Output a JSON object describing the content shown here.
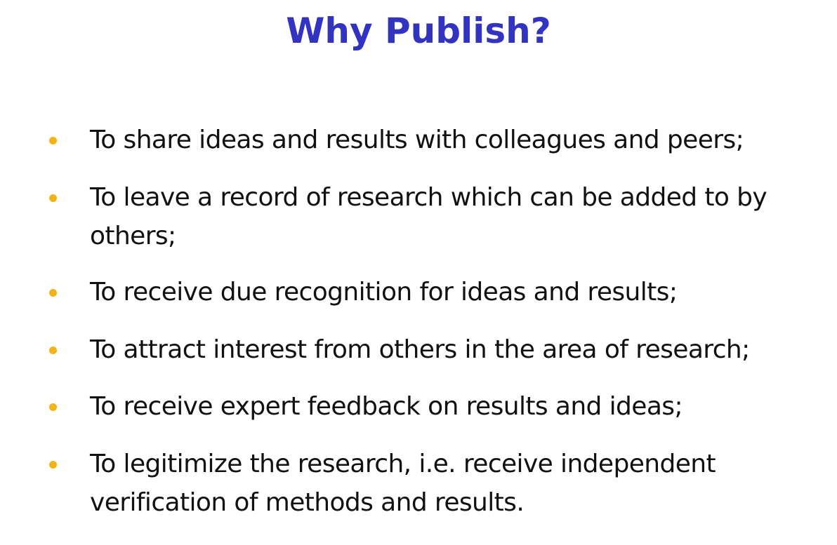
{
  "slide": {
    "title": "Why Publish?",
    "accent_color": "#3333c2",
    "bullet_color": "#f2b21a",
    "bullets": [
      {
        "text": "To share ideas and results with colleagues and peers;"
      },
      {
        "text": "To leave a record of research which can be added to by others;"
      },
      {
        "text": "To receive due recognition for ideas and results;"
      },
      {
        "text": "To attract interest from others in the area of research;"
      },
      {
        "text": "To receive expert feedback on results and ideas;"
      },
      {
        "text": "To legitimize the research, i.e. receive independent verification of methods and results."
      }
    ]
  }
}
